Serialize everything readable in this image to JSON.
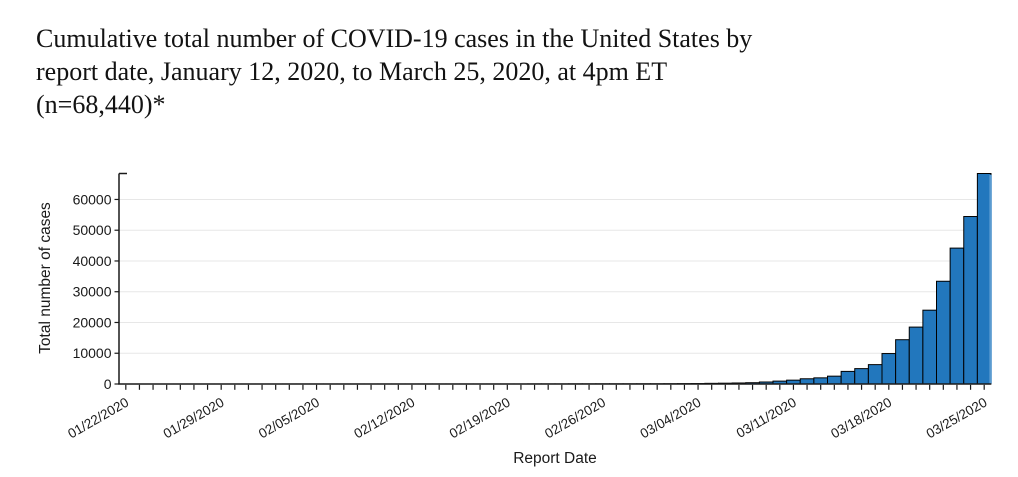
{
  "title_lines": [
    "Cumulative total number of COVID-19 cases in the United States by",
    "report date, January 12, 2020, to March 25, 2020, at 4pm ET",
    "(n=68,440)*"
  ],
  "chart_data": {
    "type": "bar",
    "title": "Cumulative total number of COVID-19 cases in the United States by report date, January 12, 2020, to March 25, 2020, at 4pm ET (n=68,440)*",
    "xlabel": "Report Date",
    "ylabel": "Total number of cases",
    "ylim": [
      0,
      68440
    ],
    "yticks": [
      0,
      10000,
      20000,
      30000,
      40000,
      50000,
      60000
    ],
    "grid": "horizontal",
    "legend": "none",
    "bar_color": "#2277bd",
    "bar_edge_color": "#000000",
    "gridline_color": "#e7e7e7",
    "axis_color": "#1a1a1a",
    "x_tick_label_every": 7,
    "x_tick_label_rotation_deg": -30,
    "total_label": "n=68,440",
    "categories": [
      "01/22/2020",
      "01/23/2020",
      "01/24/2020",
      "01/25/2020",
      "01/26/2020",
      "01/27/2020",
      "01/28/2020",
      "01/29/2020",
      "01/30/2020",
      "01/31/2020",
      "02/01/2020",
      "02/02/2020",
      "02/03/2020",
      "02/04/2020",
      "02/05/2020",
      "02/06/2020",
      "02/07/2020",
      "02/08/2020",
      "02/09/2020",
      "02/10/2020",
      "02/11/2020",
      "02/12/2020",
      "02/13/2020",
      "02/14/2020",
      "02/15/2020",
      "02/16/2020",
      "02/17/2020",
      "02/18/2020",
      "02/19/2020",
      "02/20/2020",
      "02/21/2020",
      "02/22/2020",
      "02/23/2020",
      "02/24/2020",
      "02/25/2020",
      "02/26/2020",
      "02/27/2020",
      "02/28/2020",
      "02/29/2020",
      "03/01/2020",
      "03/02/2020",
      "03/03/2020",
      "03/04/2020",
      "03/05/2020",
      "03/06/2020",
      "03/07/2020",
      "03/08/2020",
      "03/09/2020",
      "03/10/2020",
      "03/11/2020",
      "03/12/2020",
      "03/13/2020",
      "03/14/2020",
      "03/15/2020",
      "03/16/2020",
      "03/17/2020",
      "03/18/2020",
      "03/19/2020",
      "03/20/2020",
      "03/21/2020",
      "03/22/2020",
      "03/23/2020",
      "03/24/2020",
      "03/25/2020"
    ],
    "values": [
      1,
      1,
      2,
      2,
      5,
      5,
      5,
      5,
      6,
      7,
      8,
      8,
      11,
      11,
      12,
      12,
      12,
      12,
      12,
      13,
      13,
      13,
      15,
      15,
      15,
      15,
      15,
      15,
      15,
      15,
      34,
      34,
      34,
      51,
      53,
      59,
      60,
      62,
      70,
      75,
      91,
      118,
      149,
      217,
      262,
      330,
      420,
      650,
      940,
      1250,
      1700,
      2000,
      2550,
      4100,
      5000,
      6300,
      9900,
      14400,
      18500,
      24000,
      33404,
      44183,
      54453,
      68440
    ]
  }
}
